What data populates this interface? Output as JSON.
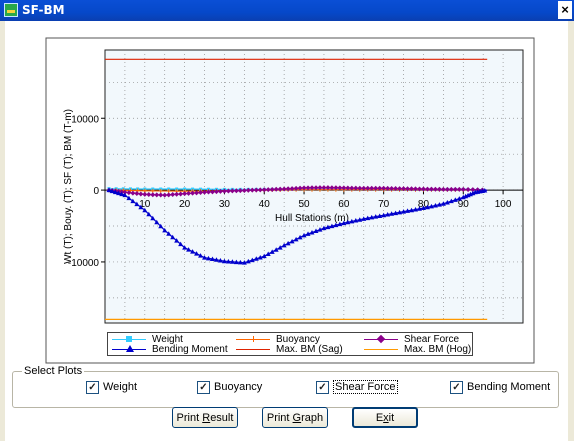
{
  "window": {
    "title": "SF-BM",
    "close_glyph": "×",
    "icon": "app-icon"
  },
  "chart_data": {
    "type": "line",
    "xlabel": "Hull Stations (m)",
    "ylabel": "Wt (T); Bouy. (T); SF (T); BM (T-m)",
    "xlim": [
      0,
      105
    ],
    "ylim": [
      -18500,
      19500
    ],
    "x_ticks": [
      10,
      20,
      30,
      40,
      50,
      60,
      70,
      80,
      90,
      100
    ],
    "y_ticks": [
      -10000,
      0,
      10000
    ],
    "grid": true,
    "series": [
      {
        "name": "Weight",
        "color": "#33ccff",
        "marker": "square",
        "x": [
          1,
          10,
          20,
          30,
          40,
          50,
          60,
          70,
          80,
          90,
          96
        ],
        "y": [
          200,
          150,
          150,
          100,
          100,
          100,
          100,
          100,
          100,
          100,
          0
        ]
      },
      {
        "name": "Buoyancy",
        "color": "#ff6600",
        "marker": "plus",
        "x": [
          1,
          10,
          20,
          30,
          40,
          50,
          60,
          70,
          80,
          90,
          96
        ],
        "y": [
          0,
          -100,
          -150,
          -100,
          0,
          50,
          50,
          50,
          50,
          50,
          0
        ]
      },
      {
        "name": "Shear Force",
        "color": "#8b008b",
        "marker": "diamond",
        "x": [
          1,
          5,
          10,
          15,
          20,
          25,
          30,
          35,
          40,
          45,
          50,
          55,
          60,
          65,
          70,
          75,
          80,
          85,
          90,
          96
        ],
        "y": [
          0,
          -300,
          -600,
          -700,
          -500,
          -300,
          -150,
          -50,
          50,
          150,
          300,
          350,
          300,
          250,
          250,
          200,
          150,
          100,
          100,
          0
        ]
      },
      {
        "name": "Bending Moment",
        "color": "#0000cc",
        "marker": "triangle",
        "x": [
          1,
          5,
          10,
          15,
          20,
          25,
          30,
          35,
          40,
          45,
          50,
          55,
          60,
          65,
          70,
          75,
          80,
          85,
          90,
          93,
          96
        ],
        "y": [
          0,
          -700,
          -2800,
          -5600,
          -8000,
          -9400,
          -9900,
          -10100,
          -9200,
          -7700,
          -6300,
          -5300,
          -4600,
          -4000,
          -3500,
          -3000,
          -2500,
          -1900,
          -1000,
          -300,
          0
        ]
      },
      {
        "name": "Max. BM (Sag)",
        "color": "#dd2200",
        "marker": "none",
        "x": [
          0,
          96
        ],
        "y": [
          18200,
          18200
        ]
      },
      {
        "name": "Max. BM (Hog)",
        "color": "#ff9900",
        "marker": "none",
        "x": [
          0,
          96
        ],
        "y": [
          -18000,
          -18000
        ]
      }
    ]
  },
  "legend": {
    "weight": "Weight",
    "buoyancy": "Buoyancy",
    "shear_force": "Shear Force",
    "bending_moment": "Bending Moment",
    "max_bm_sag": "Max. BM (Sag)",
    "max_bm_hog": "Max. BM (Hog)"
  },
  "select_plots": {
    "title": "Select Plots",
    "weight": {
      "label": "Weight",
      "checked": true
    },
    "buoyancy": {
      "label": "Buoyancy",
      "checked": true
    },
    "shear_force": {
      "label": "Shear Force",
      "checked": true
    },
    "bending_moment": {
      "label": "Bending Moment",
      "checked": true
    }
  },
  "buttons": {
    "print_result": {
      "pre": "Print ",
      "key": "R",
      "post": "esult"
    },
    "print_graph": {
      "pre": "Print ",
      "key": "G",
      "post": "raph"
    },
    "exit": {
      "pre": "E",
      "key": "x",
      "post": "it"
    }
  }
}
